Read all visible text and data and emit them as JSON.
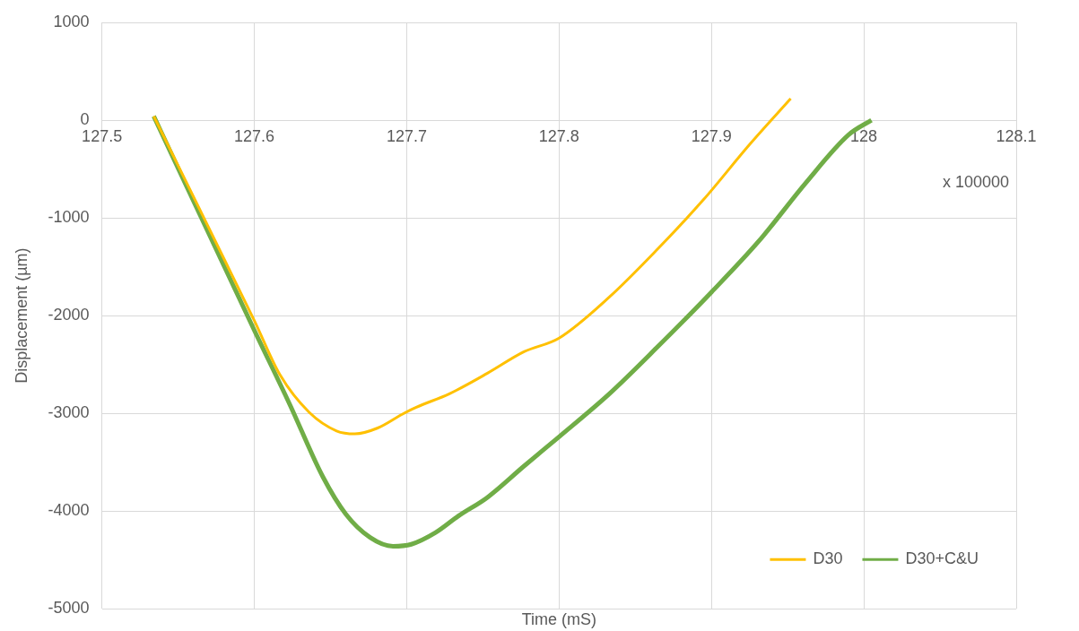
{
  "chart_data": {
    "type": "line",
    "xlabel": "Time (mS)",
    "ylabel": "Displacement (µm)",
    "annotations": [
      "x 100000"
    ],
    "xlim": [
      127.5,
      128.1
    ],
    "xticks": [
      127.5,
      127.6,
      127.7,
      127.8,
      127.9,
      128,
      128.1
    ],
    "ylim": [
      -5000,
      1000
    ],
    "yticks": [
      -5000,
      -4000,
      -3000,
      -2000,
      -1000,
      0,
      1000
    ],
    "grid": true,
    "legend": "bottom right",
    "marker": "none",
    "line_style": "solid",
    "series": [
      {
        "name": "D30",
        "color": "#ffc000",
        "x": [
          127.534,
          127.6,
          127.617,
          127.636,
          127.654,
          127.666,
          127.681,
          127.697,
          127.706,
          127.728,
          127.753,
          127.777,
          127.8,
          127.833,
          127.864,
          127.895,
          127.925,
          127.952
        ],
        "values": [
          40,
          -2050,
          -2610,
          -2990,
          -3180,
          -3210,
          -3150,
          -3010,
          -2940,
          -2800,
          -2590,
          -2370,
          -2230,
          -1810,
          -1330,
          -810,
          -250,
          220
        ]
      },
      {
        "name": "D30+C&U",
        "color": "#70ad47",
        "x": [
          127.534,
          127.6,
          127.623,
          127.645,
          127.66,
          127.676,
          127.691,
          127.703,
          127.719,
          127.734,
          127.753,
          127.777,
          127.8,
          127.833,
          127.864,
          127.9,
          127.931,
          127.962,
          127.99,
          128.005
        ],
        "values": [
          40,
          -2150,
          -2900,
          -3650,
          -4030,
          -4270,
          -4360,
          -4340,
          -4220,
          -4050,
          -3860,
          -3540,
          -3240,
          -2800,
          -2330,
          -1760,
          -1240,
          -640,
          -150,
          0
        ]
      }
    ]
  }
}
